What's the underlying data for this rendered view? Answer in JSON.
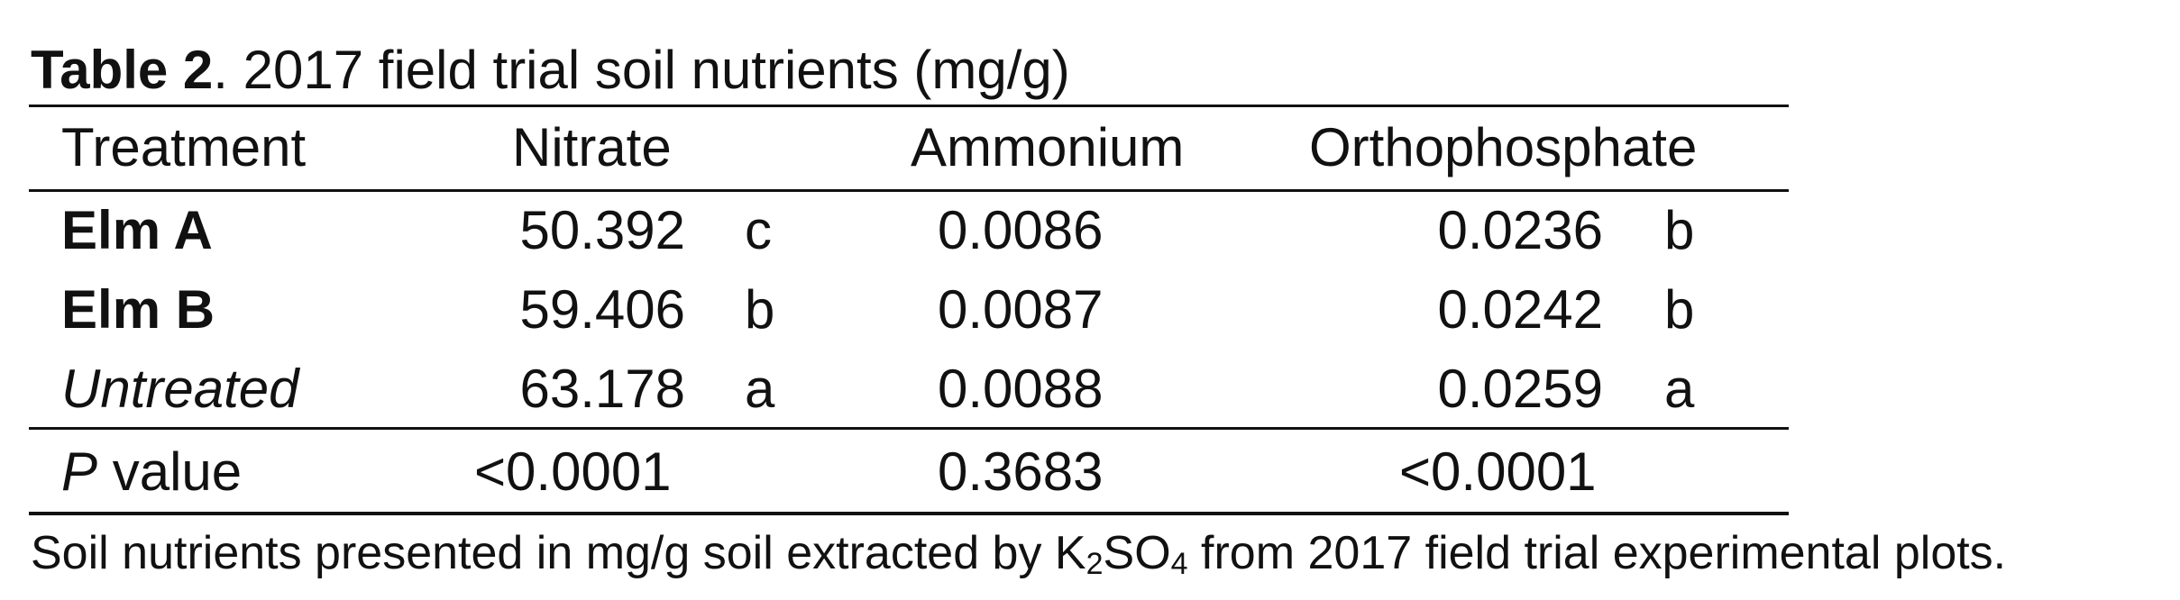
{
  "table": {
    "caption_label": "Table 2",
    "caption_text": ".  2017 field trial soil nutrients (mg/g)",
    "headers": {
      "treatment": "Treatment",
      "nitrate": "Nitrate",
      "ammonium": "Ammonium",
      "orthophosphate": "Orthophosphate"
    },
    "rows": [
      {
        "treatment": "Elm A",
        "nitrate": "50.392",
        "nitrate_letter": "c",
        "ammonium": "0.0086",
        "orthophosphate": "0.0236",
        "ortho_letter": "b"
      },
      {
        "treatment": "Elm B",
        "nitrate": "59.406",
        "nitrate_letter": "b",
        "ammonium": "0.0087",
        "orthophosphate": "0.0242",
        "ortho_letter": "b"
      },
      {
        "treatment": "Untreated",
        "nitrate": "63.178",
        "nitrate_letter": "a",
        "ammonium": "0.0088",
        "orthophosphate": "0.0259",
        "ortho_letter": "a"
      }
    ],
    "p_row": {
      "label_italic": "P",
      "label_rest": " value",
      "nitrate": "<0.0001",
      "ammonium": "0.3683",
      "orthophosphate": "<0.0001"
    },
    "footnote": {
      "before": "Soil nutrients presented in mg/g soil extracted by K",
      "sub1": "2",
      "mid": "SO",
      "sub2": "4",
      "after": " from 2017 field trial experimental plots."
    }
  }
}
